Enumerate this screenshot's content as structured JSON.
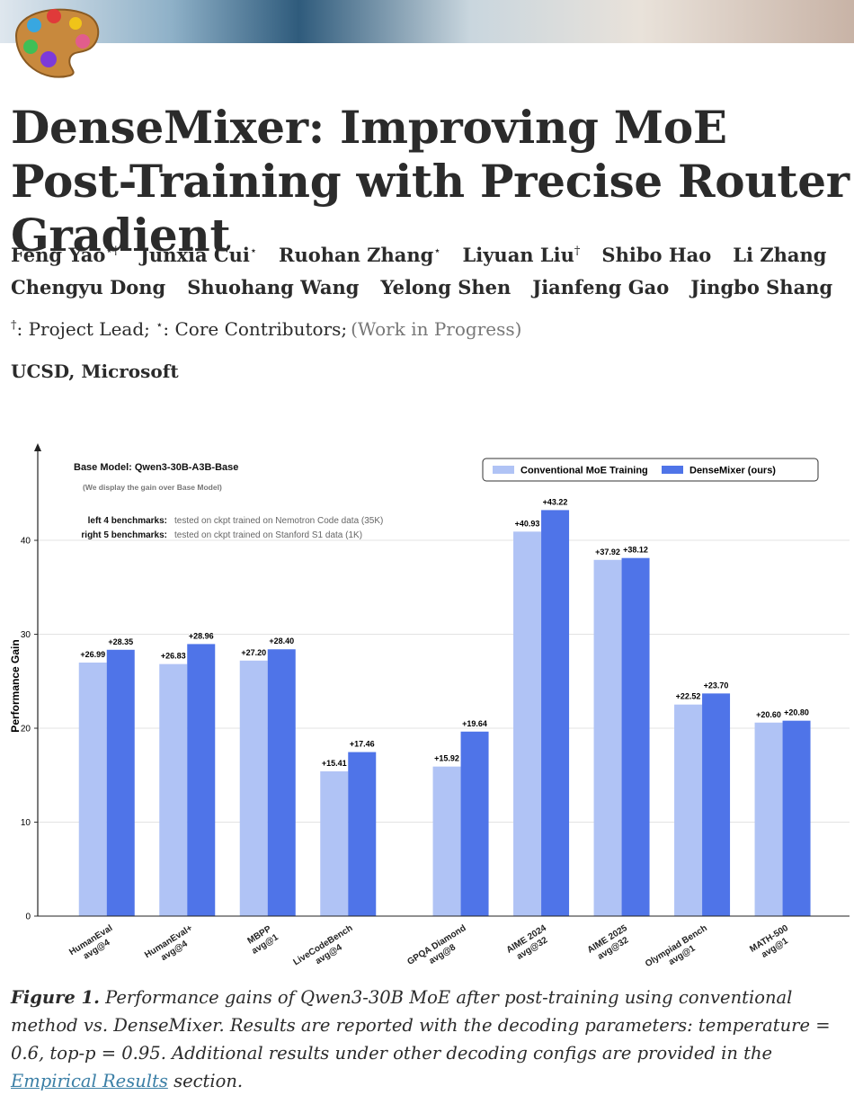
{
  "header": {
    "title": "DenseMixer: Improving MoE Post-Training with Precise Router Gradient"
  },
  "authors": [
    [
      {
        "name": "Feng Yao",
        "mark": "⋆†"
      },
      {
        "name": "Junxia Cui",
        "mark": "⋆"
      },
      {
        "name": "Ruohan Zhang",
        "mark": "⋆"
      },
      {
        "name": "Liyuan Liu",
        "mark": "†"
      },
      {
        "name": "Shibo Hao"
      },
      {
        "name": "Li Zhang"
      }
    ],
    [
      {
        "name": "Chengyu Dong"
      },
      {
        "name": "Shuohang Wang"
      },
      {
        "name": "Yelong Shen"
      },
      {
        "name": "Jianfeng Gao"
      },
      {
        "name": "Jingbo Shang"
      }
    ]
  ],
  "note": {
    "lead_mark": "†",
    "lead": ": Project Lead;",
    "core_mark": "⋆",
    "core": ": Core Contributors;",
    "status": "(Work in Progress)"
  },
  "affiliations": "UCSD, Microsoft",
  "chart_data": {
    "type": "bar",
    "annotations": [
      "Base Model: Qwen3-30B-A3B-Base",
      "(We display the gain over Base Model)",
      "left 4 benchmarks:",
      "tested on ckpt trained on Nemotron Code data (35K)",
      "right 5 benchmarks:",
      "tested on ckpt trained on Stanford S1 data (1K)"
    ],
    "y_label": "Performance Gain",
    "categories": [
      "HumanEval\navg@4",
      "HumanEval+\navg@4",
      "MBPP\navg@1",
      "LiveCodeBench\navg@4",
      null,
      "GPQA Diamond\navg@8",
      "AIME 2024\navg@32",
      "AIME 2025\navg@32",
      "Olympiad Bench\navg@1",
      "MATH-500\navg@1"
    ],
    "series": [
      {
        "name": "Conventional MoE Training",
        "color": "#b0c3f5",
        "values": [
          26.99,
          26.83,
          27.2,
          15.41,
          null,
          15.92,
          40.93,
          37.92,
          22.52,
          20.6
        ],
        "value_labels": [
          "+26.99",
          "+26.83",
          "+27.20",
          "+15.41",
          null,
          "+15.92",
          "+40.93",
          "+37.92",
          "+22.52",
          "+20.60"
        ]
      },
      {
        "name": "DenseMixer (ours)",
        "color": "#4f74e8",
        "values": [
          28.35,
          28.96,
          28.4,
          17.46,
          null,
          19.64,
          43.22,
          38.12,
          23.7,
          20.8
        ],
        "value_labels": [
          "+28.35",
          "+28.96",
          "+28.40",
          "+17.46",
          null,
          "+19.64",
          "+43.22",
          "+38.12",
          "+23.70",
          "+20.80"
        ]
      }
    ],
    "ylim": [
      0,
      49
    ],
    "yticks": [
      0,
      10,
      20,
      30,
      40
    ],
    "grid": true,
    "legend": "upper right"
  },
  "caption": {
    "label": "Figure 1.",
    "text": "Performance gains of Qwen3-30B MoE after post-training using conventional method vs. DenseMixer. Results are reported with the decoding parameters: temperature = 0.6, top-p = 0.95. Additional results under other decoding configs are provided in the",
    "link": "Empirical Results",
    "end": "section."
  }
}
